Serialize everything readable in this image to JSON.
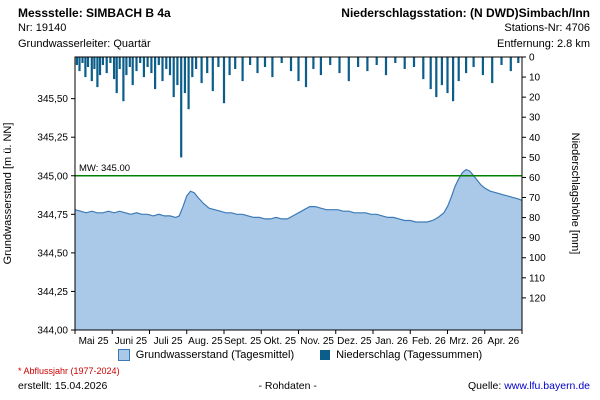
{
  "header": {
    "left": {
      "title": "Messstelle: SIMBACH B 4a",
      "line2": "Nr: 19140",
      "line3": "Grundwasserleiter: Quartär"
    },
    "right": {
      "title": "Niederschlagsstation: (N DWD)Simbach/Inn",
      "line2": "Stations-Nr: 4706",
      "line3": "Entfernung: 2.8 km"
    }
  },
  "footer": {
    "footnote": "* Abflussjahr (1977-2024)",
    "created": "erstellt: 15.04.2026",
    "center": "- Rohdaten -",
    "source_prefix": "Quelle:",
    "source_link": "www.lfu.bayern.de"
  },
  "chart_data": {
    "type": "area+bar",
    "x_axis": {
      "months": [
        "Mai 25",
        "Juni 25",
        "Juli 25",
        "Aug. 25",
        "Sept. 25",
        "Okt. 25",
        "Nov. 25",
        "Dez. 25",
        "Jan. 26",
        "Feb. 26",
        "Mrz. 26",
        "Apr. 26"
      ],
      "range_months": [
        0,
        12
      ]
    },
    "left_axis": {
      "label": "Grundwasserstand [m ü. NN]",
      "range": [
        344.0,
        345.77
      ],
      "ticks": [
        {
          "label": "345,50",
          "value": 345.5
        },
        {
          "label": "345,25",
          "value": 345.25
        },
        {
          "label": "345,00",
          "value": 345.0
        },
        {
          "label": "344,75",
          "value": 344.75
        },
        {
          "label": "344,50",
          "value": 344.5
        },
        {
          "label": "344,25",
          "value": 344.25
        },
        {
          "label": "344,00",
          "value": 344.0
        }
      ]
    },
    "right_axis": {
      "label": "Niederschlagshöhe [mm]",
      "range": [
        0,
        136
      ],
      "ticks": [
        0,
        10,
        20,
        30,
        40,
        50,
        60,
        70,
        80,
        90,
        100,
        110,
        120
      ]
    },
    "mw_line": {
      "label": "MW: 345.00",
      "value": 345.0,
      "color": "#008000"
    },
    "groundwater": {
      "name": "Grundwasserstand (Tagesmittel)",
      "color_fill": "#aac9e8",
      "color_line": "#3d7ab5",
      "points": [
        [
          0.0,
          344.78
        ],
        [
          0.15,
          344.77
        ],
        [
          0.3,
          344.76
        ],
        [
          0.45,
          344.77
        ],
        [
          0.6,
          344.76
        ],
        [
          0.75,
          344.76
        ],
        [
          0.9,
          344.77
        ],
        [
          1.05,
          344.76
        ],
        [
          1.2,
          344.77
        ],
        [
          1.35,
          344.76
        ],
        [
          1.5,
          344.75
        ],
        [
          1.65,
          344.76
        ],
        [
          1.8,
          344.75
        ],
        [
          1.95,
          344.75
        ],
        [
          2.1,
          344.74
        ],
        [
          2.25,
          344.75
        ],
        [
          2.4,
          344.74
        ],
        [
          2.55,
          344.74
        ],
        [
          2.7,
          344.73
        ],
        [
          2.8,
          344.74
        ],
        [
          2.9,
          344.8
        ],
        [
          3.0,
          344.87
        ],
        [
          3.1,
          344.9
        ],
        [
          3.2,
          344.89
        ],
        [
          3.3,
          344.86
        ],
        [
          3.45,
          344.82
        ],
        [
          3.6,
          344.79
        ],
        [
          3.75,
          344.78
        ],
        [
          3.9,
          344.77
        ],
        [
          4.05,
          344.76
        ],
        [
          4.2,
          344.76
        ],
        [
          4.35,
          344.75
        ],
        [
          4.5,
          344.75
        ],
        [
          4.65,
          344.74
        ],
        [
          4.8,
          344.73
        ],
        [
          4.95,
          344.73
        ],
        [
          5.1,
          344.72
        ],
        [
          5.25,
          344.72
        ],
        [
          5.4,
          344.73
        ],
        [
          5.55,
          344.72
        ],
        [
          5.7,
          344.72
        ],
        [
          5.85,
          344.74
        ],
        [
          6.0,
          344.76
        ],
        [
          6.15,
          344.78
        ],
        [
          6.3,
          344.8
        ],
        [
          6.45,
          344.8
        ],
        [
          6.6,
          344.79
        ],
        [
          6.75,
          344.78
        ],
        [
          6.9,
          344.78
        ],
        [
          7.05,
          344.78
        ],
        [
          7.2,
          344.77
        ],
        [
          7.35,
          344.77
        ],
        [
          7.5,
          344.76
        ],
        [
          7.65,
          344.76
        ],
        [
          7.8,
          344.76
        ],
        [
          7.95,
          344.75
        ],
        [
          8.1,
          344.75
        ],
        [
          8.25,
          344.74
        ],
        [
          8.4,
          344.73
        ],
        [
          8.55,
          344.73
        ],
        [
          8.7,
          344.72
        ],
        [
          8.85,
          344.71
        ],
        [
          9.0,
          344.71
        ],
        [
          9.15,
          344.7
        ],
        [
          9.3,
          344.7
        ],
        [
          9.45,
          344.7
        ],
        [
          9.6,
          344.71
        ],
        [
          9.75,
          344.73
        ],
        [
          9.9,
          344.76
        ],
        [
          10.0,
          344.8
        ],
        [
          10.1,
          344.86
        ],
        [
          10.2,
          344.93
        ],
        [
          10.3,
          344.98
        ],
        [
          10.4,
          345.02
        ],
        [
          10.5,
          345.04
        ],
        [
          10.6,
          345.03
        ],
        [
          10.7,
          345.0
        ],
        [
          10.8,
          344.97
        ],
        [
          10.9,
          344.94
        ],
        [
          11.0,
          344.92
        ],
        [
          11.15,
          344.9
        ],
        [
          11.3,
          344.89
        ],
        [
          11.45,
          344.88
        ],
        [
          11.6,
          344.87
        ],
        [
          11.75,
          344.86
        ],
        [
          11.9,
          344.85
        ],
        [
          12.0,
          344.84
        ]
      ]
    },
    "precipitation": {
      "name": "Niederschlag (Tagessummen)",
      "color": "#0b5d8a",
      "bars": [
        [
          0.05,
          4
        ],
        [
          0.12,
          7
        ],
        [
          0.2,
          3
        ],
        [
          0.28,
          10
        ],
        [
          0.35,
          5
        ],
        [
          0.45,
          12
        ],
        [
          0.52,
          6
        ],
        [
          0.6,
          15
        ],
        [
          0.67,
          9
        ],
        [
          0.75,
          4
        ],
        [
          0.85,
          8
        ],
        [
          0.95,
          3
        ],
        [
          1.05,
          11
        ],
        [
          1.12,
          18
        ],
        [
          1.2,
          6
        ],
        [
          1.3,
          22
        ],
        [
          1.38,
          9
        ],
        [
          1.47,
          5
        ],
        [
          1.55,
          14
        ],
        [
          1.65,
          7
        ],
        [
          1.75,
          3
        ],
        [
          1.85,
          10
        ],
        [
          1.95,
          5
        ],
        [
          2.05,
          8
        ],
        [
          2.15,
          16
        ],
        [
          2.25,
          4
        ],
        [
          2.35,
          12
        ],
        [
          2.45,
          6
        ],
        [
          2.55,
          9
        ],
        [
          2.65,
          20
        ],
        [
          2.75,
          14
        ],
        [
          2.85,
          50
        ],
        [
          2.95,
          18
        ],
        [
          3.05,
          26
        ],
        [
          3.15,
          10
        ],
        [
          3.25,
          6
        ],
        [
          3.4,
          13
        ],
        [
          3.55,
          8
        ],
        [
          3.7,
          17
        ],
        [
          3.85,
          5
        ],
        [
          4.0,
          23
        ],
        [
          4.15,
          9
        ],
        [
          4.3,
          6
        ],
        [
          4.5,
          12
        ],
        [
          4.7,
          4
        ],
        [
          4.9,
          8
        ],
        [
          5.1,
          5
        ],
        [
          5.3,
          10
        ],
        [
          5.55,
          3
        ],
        [
          5.8,
          7
        ],
        [
          6.0,
          12
        ],
        [
          6.2,
          15
        ],
        [
          6.4,
          6
        ],
        [
          6.6,
          9
        ],
        [
          6.85,
          4
        ],
        [
          7.1,
          8
        ],
        [
          7.35,
          12
        ],
        [
          7.6,
          5
        ],
        [
          7.85,
          7
        ],
        [
          8.1,
          4
        ],
        [
          8.35,
          9
        ],
        [
          8.6,
          3
        ],
        [
          8.85,
          6
        ],
        [
          9.1,
          5
        ],
        [
          9.35,
          11
        ],
        [
          9.55,
          16
        ],
        [
          9.7,
          20
        ],
        [
          9.85,
          14
        ],
        [
          10.0,
          18
        ],
        [
          10.15,
          22
        ],
        [
          10.3,
          12
        ],
        [
          10.5,
          8
        ],
        [
          10.7,
          5
        ],
        [
          10.95,
          9
        ],
        [
          11.2,
          13
        ],
        [
          11.45,
          4
        ],
        [
          11.7,
          7
        ],
        [
          11.9,
          3
        ]
      ]
    }
  }
}
